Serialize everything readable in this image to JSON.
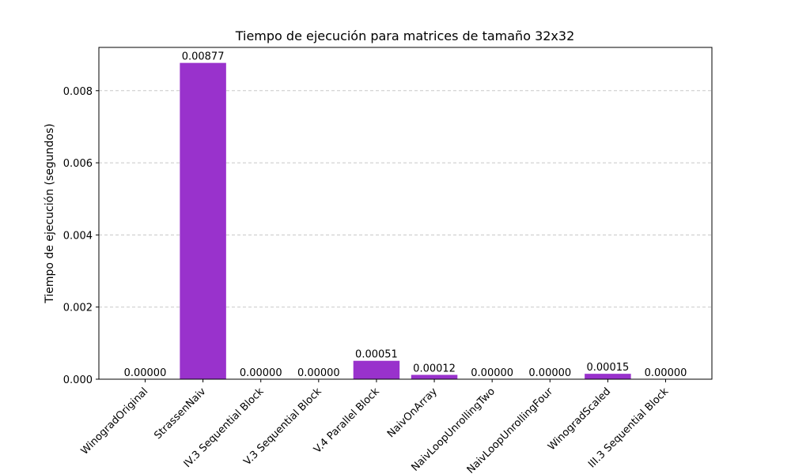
{
  "chart_data": {
    "type": "bar",
    "title": "Tiempo de ejecución para matrices de tamaño 32x32",
    "xlabel": "",
    "ylabel": "Tiempo de ejecución (segundos)",
    "categories": [
      "WinogradOriginal",
      "StrassenNaiv",
      "IV.3 Sequential Block",
      "V.3 Sequential Block",
      "V.4 Parallel Block",
      "NaivOnArray",
      "NaivLoopUnrollingTwo",
      "NaivLoopUnrollingFour",
      "WinogradScaled",
      "III.3 Sequential Block"
    ],
    "values": [
      0.0,
      0.00877,
      0.0,
      0.0,
      0.00051,
      0.00012,
      0.0,
      0.0,
      0.00015,
      0.0
    ],
    "value_labels": [
      "0.00000",
      "0.00877",
      "0.00000",
      "0.00000",
      "0.00051",
      "0.00012",
      "0.00000",
      "0.00000",
      "0.00015",
      "0.00000"
    ],
    "ylim": [
      0,
      0.0092
    ],
    "yticks": [
      0.0,
      0.002,
      0.004,
      0.006,
      0.008
    ],
    "ytick_labels": [
      "0.000",
      "0.002",
      "0.004",
      "0.006",
      "0.008"
    ],
    "grid": "y-dashed",
    "bar_color": "#9932CC",
    "grid_color": "#c8c8c8"
  }
}
